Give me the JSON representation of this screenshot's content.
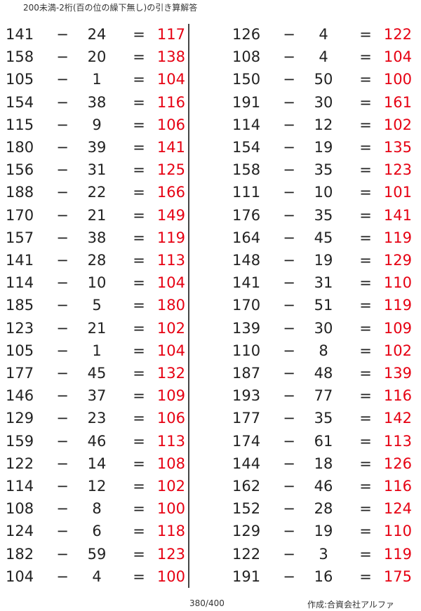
{
  "title": "200未満-2桁(百の位の繰下無し)の引き算解答",
  "operator": "−",
  "equals": "=",
  "answer_color": "#e60012",
  "columns": [
    {
      "rows": [
        {
          "a": "141",
          "b": "24",
          "answer": "117"
        },
        {
          "a": "158",
          "b": "20",
          "answer": "138"
        },
        {
          "a": "105",
          "b": "1",
          "answer": "104"
        },
        {
          "a": "154",
          "b": "38",
          "answer": "116"
        },
        {
          "a": "115",
          "b": "9",
          "answer": "106"
        },
        {
          "a": "180",
          "b": "39",
          "answer": "141"
        },
        {
          "a": "156",
          "b": "31",
          "answer": "125"
        },
        {
          "a": "188",
          "b": "22",
          "answer": "166"
        },
        {
          "a": "170",
          "b": "21",
          "answer": "149"
        },
        {
          "a": "157",
          "b": "38",
          "answer": "119"
        },
        {
          "a": "141",
          "b": "28",
          "answer": "113"
        },
        {
          "a": "114",
          "b": "10",
          "answer": "104"
        },
        {
          "a": "185",
          "b": "5",
          "answer": "180"
        },
        {
          "a": "123",
          "b": "21",
          "answer": "102"
        },
        {
          "a": "105",
          "b": "1",
          "answer": "104"
        },
        {
          "a": "177",
          "b": "45",
          "answer": "132"
        },
        {
          "a": "146",
          "b": "37",
          "answer": "109"
        },
        {
          "a": "129",
          "b": "23",
          "answer": "106"
        },
        {
          "a": "159",
          "b": "46",
          "answer": "113"
        },
        {
          "a": "122",
          "b": "14",
          "answer": "108"
        },
        {
          "a": "114",
          "b": "12",
          "answer": "102"
        },
        {
          "a": "108",
          "b": "8",
          "answer": "100"
        },
        {
          "a": "124",
          "b": "6",
          "answer": "118"
        },
        {
          "a": "182",
          "b": "59",
          "answer": "123"
        },
        {
          "a": "104",
          "b": "4",
          "answer": "100"
        }
      ]
    },
    {
      "rows": [
        {
          "a": "126",
          "b": "4",
          "answer": "122"
        },
        {
          "a": "108",
          "b": "4",
          "answer": "104"
        },
        {
          "a": "150",
          "b": "50",
          "answer": "100"
        },
        {
          "a": "191",
          "b": "30",
          "answer": "161"
        },
        {
          "a": "114",
          "b": "12",
          "answer": "102"
        },
        {
          "a": "154",
          "b": "19",
          "answer": "135"
        },
        {
          "a": "158",
          "b": "35",
          "answer": "123"
        },
        {
          "a": "111",
          "b": "10",
          "answer": "101"
        },
        {
          "a": "176",
          "b": "35",
          "answer": "141"
        },
        {
          "a": "164",
          "b": "45",
          "answer": "119"
        },
        {
          "a": "148",
          "b": "19",
          "answer": "129"
        },
        {
          "a": "141",
          "b": "31",
          "answer": "110"
        },
        {
          "a": "170",
          "b": "51",
          "answer": "119"
        },
        {
          "a": "139",
          "b": "30",
          "answer": "109"
        },
        {
          "a": "110",
          "b": "8",
          "answer": "102"
        },
        {
          "a": "187",
          "b": "48",
          "answer": "139"
        },
        {
          "a": "193",
          "b": "77",
          "answer": "116"
        },
        {
          "a": "177",
          "b": "35",
          "answer": "142"
        },
        {
          "a": "174",
          "b": "61",
          "answer": "113"
        },
        {
          "a": "144",
          "b": "18",
          "answer": "126"
        },
        {
          "a": "162",
          "b": "46",
          "answer": "116"
        },
        {
          "a": "152",
          "b": "28",
          "answer": "124"
        },
        {
          "a": "129",
          "b": "19",
          "answer": "110"
        },
        {
          "a": "122",
          "b": "3",
          "answer": "119"
        },
        {
          "a": "191",
          "b": "16",
          "answer": "175"
        }
      ]
    }
  ],
  "footer": {
    "page": "380/400",
    "credit": "作成:合資会社アルファ"
  }
}
